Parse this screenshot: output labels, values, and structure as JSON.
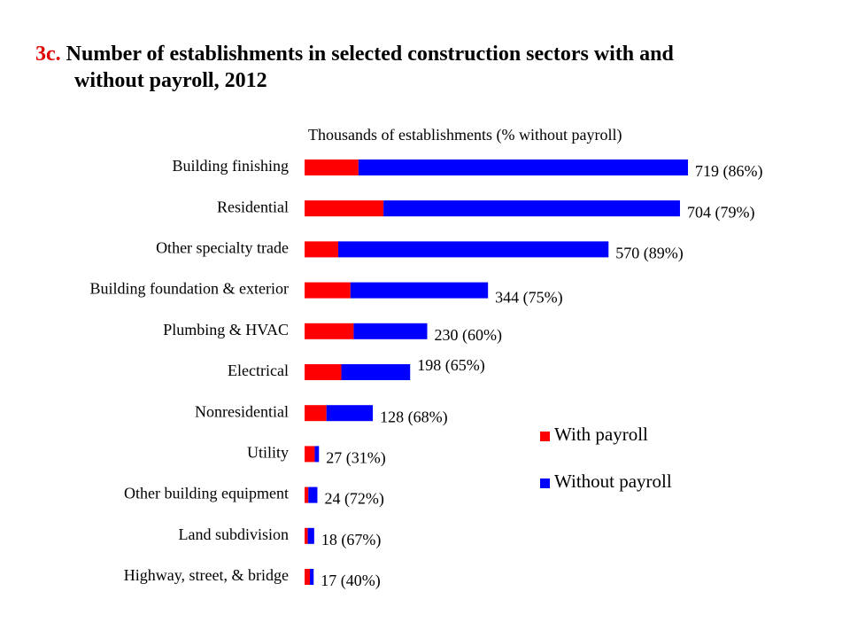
{
  "title": {
    "number": "3c.",
    "line1": "Number of establishments in selected construction sectors with and",
    "line2": "without payroll, 2012"
  },
  "colors": {
    "with_payroll": "#ff0000",
    "without_payroll": "#0000ff"
  },
  "chart_data": {
    "type": "bar",
    "orientation": "horizontal",
    "stacked": true,
    "subtitle": "Thousands  of establishments  (% without payroll)",
    "categories": [
      "Building finishing",
      "Residential",
      "Other specialty trade",
      "Building foundation & exterior",
      "Plumbing & HVAC",
      "Electrical",
      "Nonresidential",
      "Utility",
      "Other building equipment",
      "Land subdivision",
      "Highway, street, & bridge"
    ],
    "totals": [
      719,
      704,
      570,
      344,
      230,
      198,
      128,
      27,
      24,
      18,
      17
    ],
    "pct_without_payroll": [
      86,
      79,
      89,
      75,
      60,
      65,
      68,
      31,
      72,
      67,
      40
    ],
    "data_labels": [
      "719 (86%)",
      "704 (79%)",
      "570 (89%)",
      "344 (75%)",
      "230 (60%)",
      "198 (65%)",
      "128 (68%)",
      "27 (31%)",
      "24 (72%)",
      "18 (67%)",
      "17 (40%)"
    ],
    "series": [
      {
        "name": "With payroll",
        "values": [
          101,
          148,
          63,
          86,
          92,
          69,
          41,
          19,
          7,
          6,
          10
        ]
      },
      {
        "name": "Without payroll",
        "values": [
          618,
          556,
          507,
          258,
          138,
          129,
          87,
          8,
          17,
          12,
          7
        ]
      }
    ],
    "xlim": [
      0,
      719
    ],
    "grid": false,
    "legend": {
      "position": "center-right",
      "entries": [
        "With payroll",
        "Without payroll"
      ]
    }
  }
}
